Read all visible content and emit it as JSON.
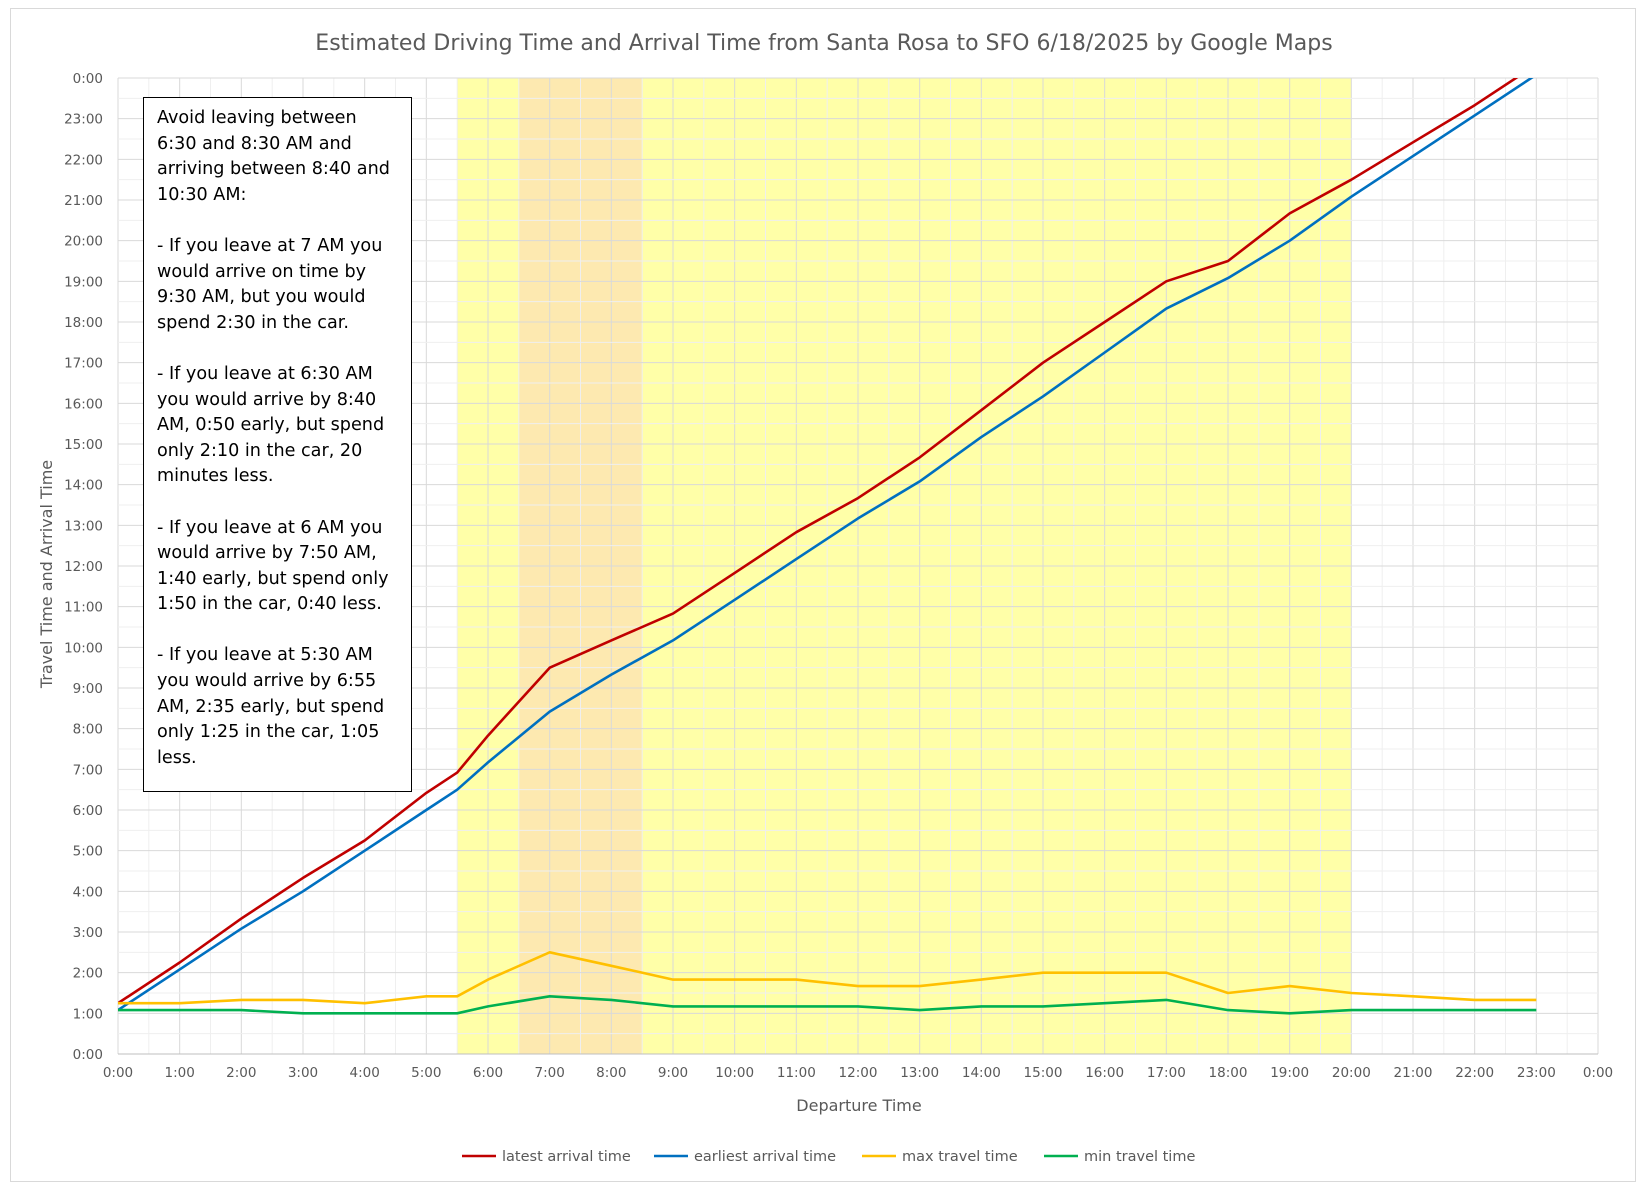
{
  "chart_data": {
    "type": "line",
    "title": "Estimated Driving Time and Arrival Time from Santa Rosa to SFO 6/18/2025 by Google Maps",
    "xlabel": "Departure Time",
    "ylabel": "Travel Time and Arrival Time",
    "x_unit": "hour of day",
    "y_unit": "hour of day",
    "xlim": [
      0,
      24
    ],
    "ylim": [
      0,
      24
    ],
    "x_tick_labels": [
      "0:00",
      "1:00",
      "2:00",
      "3:00",
      "4:00",
      "5:00",
      "6:00",
      "7:00",
      "8:00",
      "9:00",
      "10:00",
      "11:00",
      "12:00",
      "13:00",
      "14:00",
      "15:00",
      "16:00",
      "17:00",
      "18:00",
      "19:00",
      "20:00",
      "21:00",
      "22:00",
      "23:00",
      "0:00"
    ],
    "y_tick_labels": [
      "0:00",
      "1:00",
      "2:00",
      "3:00",
      "4:00",
      "5:00",
      "6:00",
      "7:00",
      "8:00",
      "9:00",
      "10:00",
      "11:00",
      "12:00",
      "13:00",
      "14:00",
      "15:00",
      "16:00",
      "17:00",
      "18:00",
      "19:00",
      "20:00",
      "21:00",
      "22:00",
      "23:00",
      "0:00"
    ],
    "grid": true,
    "legend_position": "bottom",
    "shaded_regions": [
      {
        "x": [
          5.5,
          20.0
        ],
        "color": "#ffffa8"
      },
      {
        "x": [
          6.5,
          8.5
        ],
        "color": "#fde9b0"
      }
    ],
    "x": [
      0,
      1,
      2,
      3,
      4,
      5,
      5.5,
      6,
      7,
      8,
      9,
      10,
      11,
      12,
      13,
      14,
      15,
      16,
      17,
      18,
      19,
      20,
      21,
      22,
      23
    ],
    "series": [
      {
        "name": "latest arrival time",
        "color": "#c00000",
        "values": [
          1.25,
          2.25,
          3.33,
          4.33,
          5.25,
          6.42,
          6.92,
          7.83,
          9.5,
          10.17,
          10.83,
          11.83,
          12.83,
          13.67,
          14.67,
          15.83,
          17.0,
          18.0,
          19.0,
          19.5,
          20.67,
          21.5,
          22.42,
          23.33,
          24.33
        ]
      },
      {
        "name": "earliest arrival time",
        "color": "#0070c0",
        "values": [
          1.08,
          2.08,
          3.08,
          4.0,
          5.0,
          6.0,
          6.5,
          7.17,
          8.42,
          9.33,
          10.17,
          11.17,
          12.17,
          13.17,
          14.08,
          15.17,
          16.17,
          17.25,
          18.33,
          19.08,
          20.0,
          21.08,
          22.08,
          23.08,
          24.08
        ]
      },
      {
        "name": "max travel time",
        "color": "#ffc000",
        "values": [
          1.25,
          1.25,
          1.33,
          1.33,
          1.25,
          1.42,
          1.42,
          1.83,
          2.5,
          2.17,
          1.83,
          1.83,
          1.83,
          1.67,
          1.67,
          1.83,
          2.0,
          2.0,
          2.0,
          1.5,
          1.67,
          1.5,
          1.42,
          1.33,
          1.33
        ]
      },
      {
        "name": "min travel time",
        "color": "#00b050",
        "values": [
          1.08,
          1.08,
          1.08,
          1.0,
          1.0,
          1.0,
          1.0,
          1.17,
          1.42,
          1.33,
          1.17,
          1.17,
          1.17,
          1.17,
          1.08,
          1.17,
          1.17,
          1.25,
          1.33,
          1.08,
          1.0,
          1.08,
          1.08,
          1.08,
          1.08
        ]
      }
    ],
    "annotation": [
      "Avoid leaving between 6:30 and 8:30 AM and arriving between 8:40 and 10:30 AM:",
      "- If you leave at 7 AM you would arrive on time by 9:30 AM, but you would spend 2:30 in the car.",
      "- If you leave at 6:30 AM you would arrive by 8:40 AM, 0:50 early, but spend only 2:10 in the car, 20 minutes less.",
      "- If you leave at 6 AM you would arrive by 7:50 AM, 1:40 early, but spend only 1:50 in the car, 0:40 less.",
      "- If you leave at 5:30 AM you would arrive by 6:55 AM, 2:35 early, but spend only 1:25 in the car, 1:05 less."
    ]
  }
}
